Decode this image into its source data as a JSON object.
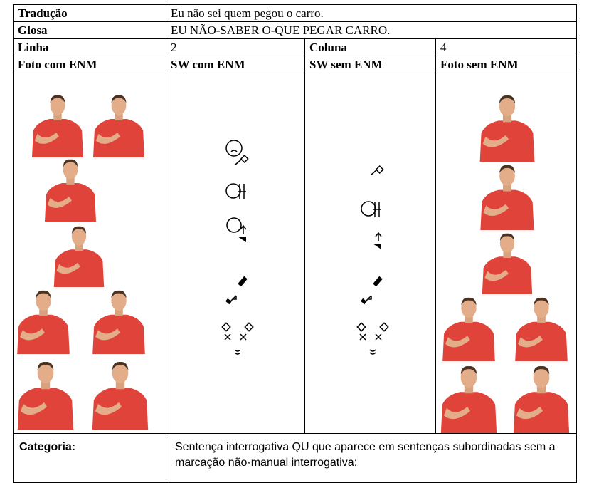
{
  "translation": {
    "label": "Tradução",
    "text": "Eu não sei quem pegou o carro."
  },
  "gloss": {
    "label": "Glosa",
    "text": "EU NÃO-SABER O-QUE PEGAR CARRO."
  },
  "position": {
    "row_label": "Linha",
    "row_value": 2,
    "col_label": "Coluna",
    "col_value": 4
  },
  "headers": [
    "Foto com ENM",
    "SW com ENM",
    "SW sem ENM",
    "Foto sem ENM"
  ],
  "category": {
    "label": "Categoria:",
    "text": "Sentença interrogativa QU que aparece em sentenças subordinadas sem a marcação não-manual interrogativa:"
  }
}
